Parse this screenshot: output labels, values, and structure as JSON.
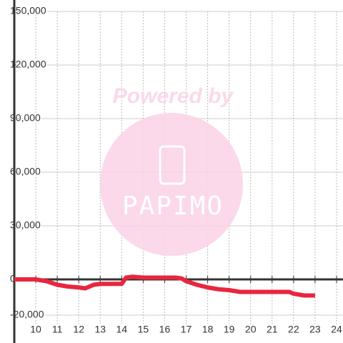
{
  "chart_data": {
    "type": "line",
    "x": [
      9,
      9.5,
      10,
      10.5,
      11,
      11.5,
      12,
      12.3,
      12.7,
      13,
      13.5,
      14,
      14.2,
      14.5,
      15,
      15.5,
      16,
      16.5,
      16.8,
      17,
      17.5,
      18,
      18.5,
      19,
      19.5,
      20,
      20.5,
      21,
      21.5,
      21.8,
      22,
      22.5,
      23
    ],
    "series": [
      {
        "color": "#e8263f",
        "values": [
          0,
          0,
          0,
          -1000,
          -3000,
          -4000,
          -4500,
          -5000,
          -3000,
          -2500,
          -2500,
          -2500,
          1000,
          1500,
          1000,
          1000,
          1000,
          1000,
          500,
          -1000,
          -3000,
          -4500,
          -5500,
          -6000,
          -7000,
          -7000,
          -7000,
          -7000,
          -7000,
          -7000,
          -8000,
          -9000,
          -9000
        ]
      }
    ],
    "xlim": [
      9,
      24.3
    ],
    "xticks": [
      10,
      11,
      12,
      13,
      14,
      15,
      16,
      17,
      18,
      19,
      20,
      21,
      22,
      23,
      24
    ],
    "ylim": [
      -25000,
      150000
    ],
    "yticks": [
      {
        "value": -20000,
        "label": "-20,000"
      },
      0,
      {
        "value": 30000,
        "label": "30,000"
      },
      {
        "value": 60000,
        "label": "60,000"
      },
      {
        "value": 90000,
        "label": "90,000"
      },
      {
        "value": 120000,
        "label": "120,000"
      },
      {
        "value": 150000,
        "label": "150,000"
      }
    ],
    "grid": true
  },
  "watermark": {
    "line1": "Powered by",
    "line2": "PAPIMO"
  }
}
